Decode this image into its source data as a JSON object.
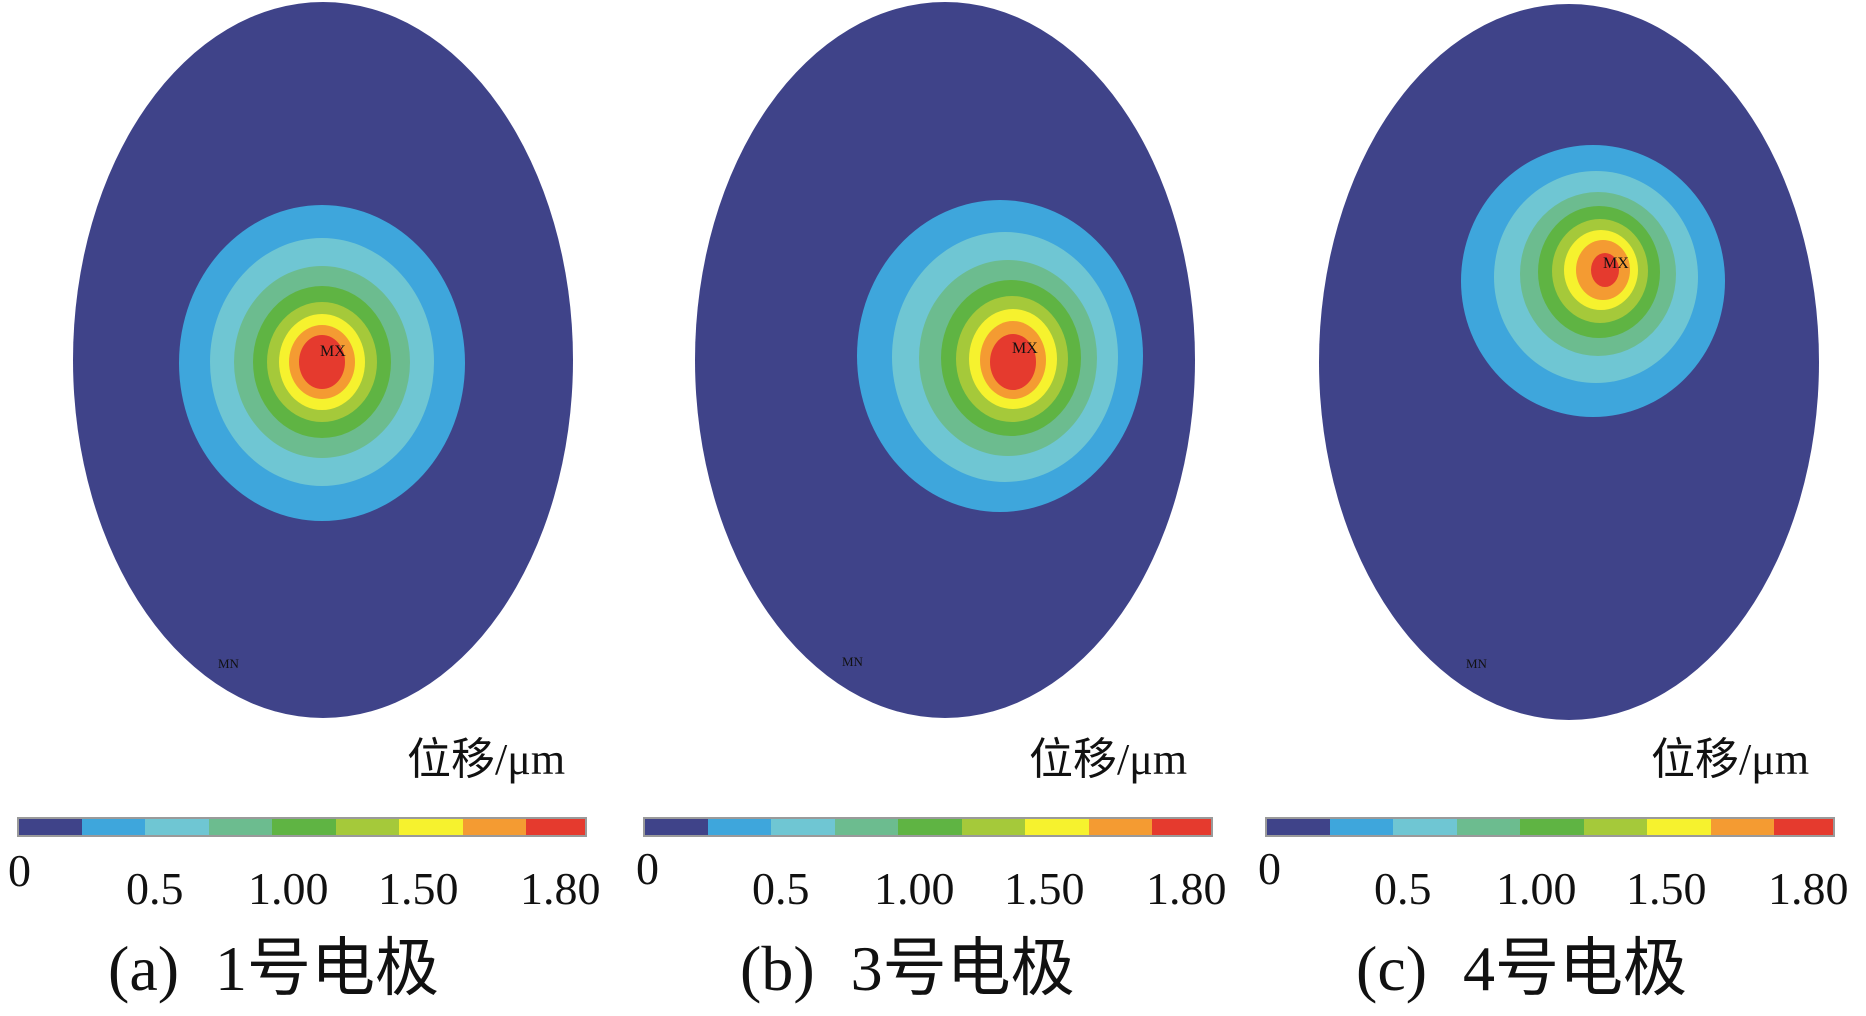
{
  "colors": {
    "background": "#ffffff",
    "bands": [
      "#3f4389",
      "#3ea6dc",
      "#6fc6d3",
      "#6cbc8f",
      "#5fb443",
      "#a5c93a",
      "#f6f22e",
      "#f49b32",
      "#e53a2e"
    ],
    "marker_text": "#3a1f3a"
  },
  "panels": [
    {
      "id": "a",
      "caption_letter": "(a)",
      "caption_text": "1号电极",
      "unit_label": "位移/μm",
      "max_marker": "MX",
      "min_marker": "MN",
      "scale_labels": [
        "0",
        "0.5",
        "1.00",
        "1.50",
        "1.80"
      ]
    },
    {
      "id": "b",
      "caption_letter": "(b)",
      "caption_text": "3号电极",
      "unit_label": "位移/μm",
      "max_marker": "MX",
      "min_marker": "MN",
      "scale_labels": [
        "0",
        "0.5",
        "1.00",
        "1.50",
        "1.80"
      ]
    },
    {
      "id": "c",
      "caption_letter": "(c)",
      "caption_text": "4号电极",
      "unit_label": "位移/μm",
      "max_marker": "MX",
      "min_marker": "MN",
      "scale_labels": [
        "0",
        "0.5",
        "1.00",
        "1.50",
        "1.80"
      ]
    }
  ]
}
